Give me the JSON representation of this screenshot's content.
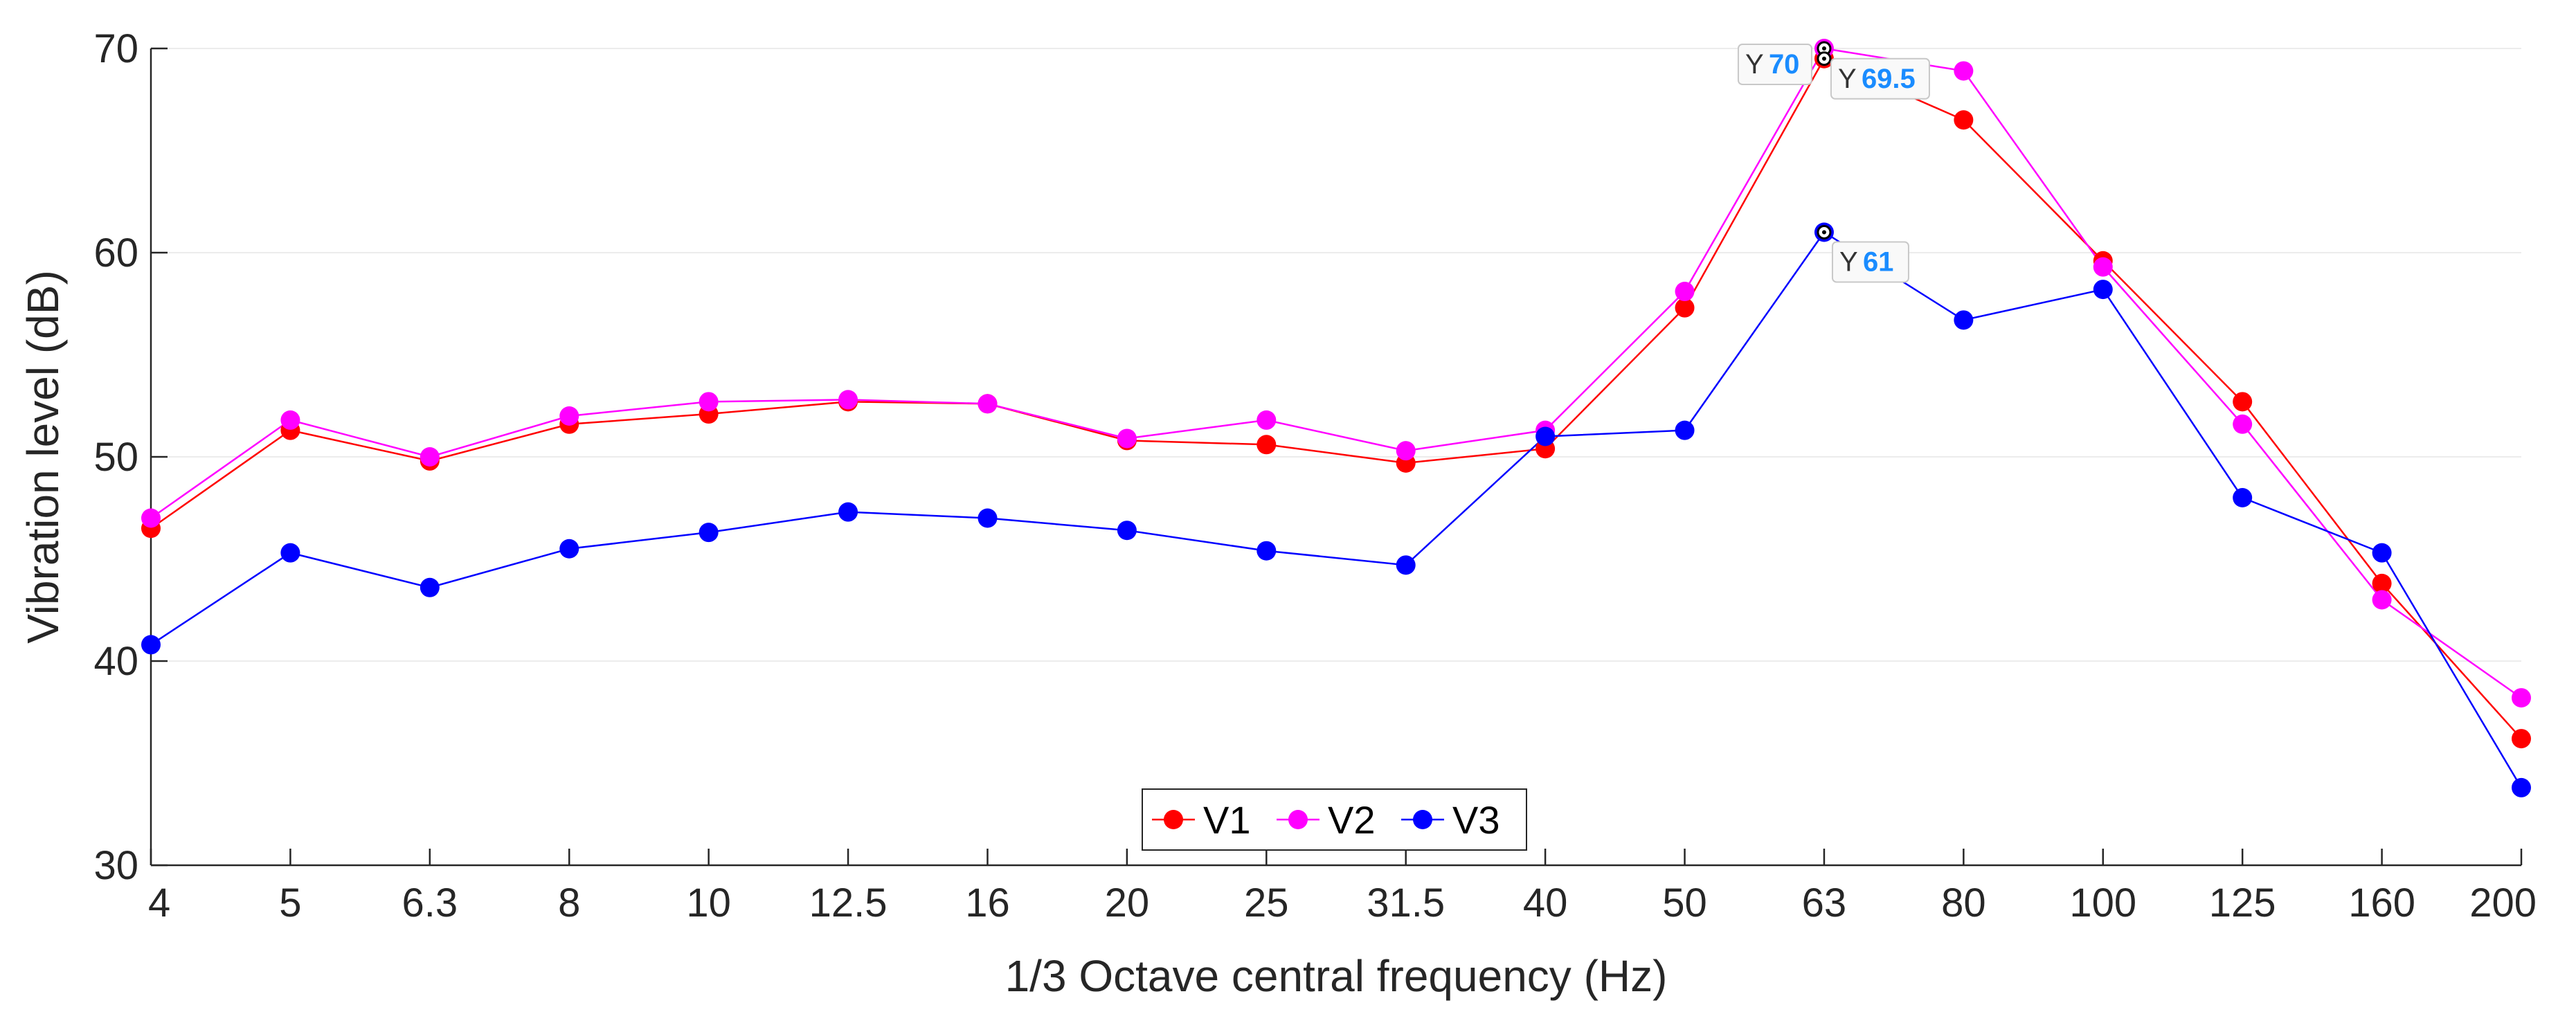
{
  "chart_data": {
    "type": "line",
    "title": "",
    "xlabel": "1/3 Octave central frequency (Hz)",
    "ylabel": "Vibration level (dB)",
    "categories": [
      "4",
      "5",
      "6.3",
      "8",
      "10",
      "12.5",
      "16",
      "20",
      "25",
      "31.5",
      "40",
      "50",
      "63",
      "80",
      "100",
      "125",
      "160",
      "200"
    ],
    "ylim": [
      30,
      70
    ],
    "yticks": [
      "30",
      "40",
      "50",
      "60",
      "70"
    ],
    "grid": true,
    "legend_position": "bottom-center",
    "series": [
      {
        "name": "V1",
        "color": "#ff0000",
        "values": [
          46.5,
          51.3,
          49.8,
          51.6,
          52.1,
          52.7,
          52.6,
          50.8,
          50.6,
          49.7,
          50.4,
          57.3,
          69.5,
          66.5,
          59.6,
          52.7,
          43.8,
          36.2
        ]
      },
      {
        "name": "V2",
        "color": "#ff00ff",
        "values": [
          47.0,
          51.8,
          50.0,
          52.0,
          52.7,
          52.8,
          52.6,
          50.9,
          51.8,
          50.3,
          51.3,
          58.1,
          70.0,
          68.9,
          59.3,
          51.6,
          43.0,
          38.2
        ]
      },
      {
        "name": "V3",
        "color": "#0000ff",
        "values": [
          40.8,
          45.3,
          43.6,
          45.5,
          46.3,
          47.3,
          47.0,
          46.4,
          45.4,
          44.7,
          51.0,
          51.3,
          61.0,
          56.7,
          58.2,
          48.0,
          45.3,
          33.8
        ]
      }
    ],
    "datatips": [
      {
        "series": "V2",
        "category": "63",
        "prefix": "Y",
        "value": "70"
      },
      {
        "series": "V1",
        "category": "63",
        "prefix": "Y",
        "value": "69.5"
      },
      {
        "series": "V3",
        "category": "63",
        "prefix": "Y",
        "value": "61"
      }
    ]
  }
}
